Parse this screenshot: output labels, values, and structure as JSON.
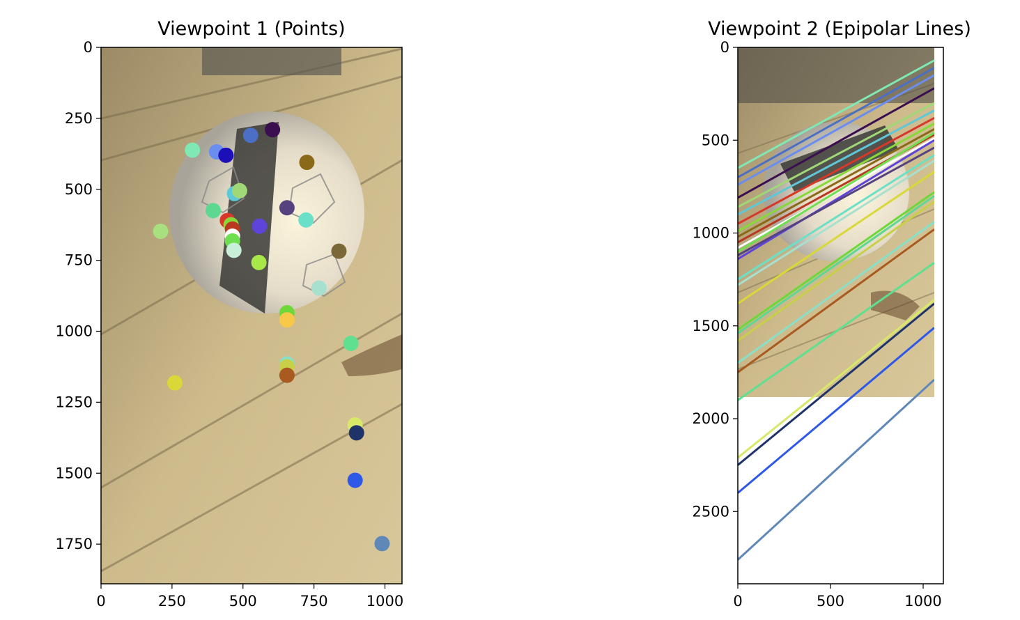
{
  "chart_data": [
    {
      "type": "scatter",
      "title": "Viewpoint 1 (Points)",
      "xlim": [
        0,
        1060
      ],
      "ylim": [
        1890,
        0
      ],
      "x_ticks": [
        0,
        250,
        500,
        750,
        1000
      ],
      "y_ticks": [
        0,
        250,
        500,
        750,
        1000,
        1250,
        1500,
        1750
      ],
      "background": "photo of a soccer ball on wooden deck boards",
      "points": [
        {
          "x": 604,
          "y": 290,
          "color": "#3b0f4f"
        },
        {
          "x": 527,
          "y": 310,
          "color": "#4a6fc4"
        },
        {
          "x": 322,
          "y": 362,
          "color": "#7fe8b4"
        },
        {
          "x": 407,
          "y": 368,
          "color": "#6a8df0"
        },
        {
          "x": 440,
          "y": 380,
          "color": "#1c0fb8"
        },
        {
          "x": 725,
          "y": 405,
          "color": "#8a6a18"
        },
        {
          "x": 470,
          "y": 515,
          "color": "#5ec8d8"
        },
        {
          "x": 488,
          "y": 505,
          "color": "#a0d878"
        },
        {
          "x": 655,
          "y": 565,
          "color": "#54437f"
        },
        {
          "x": 395,
          "y": 575,
          "color": "#5ed890"
        },
        {
          "x": 722,
          "y": 608,
          "color": "#6be0c8"
        },
        {
          "x": 445,
          "y": 610,
          "color": "#d83828"
        },
        {
          "x": 458,
          "y": 625,
          "color": "#88d838"
        },
        {
          "x": 463,
          "y": 640,
          "color": "#b83820"
        },
        {
          "x": 558,
          "y": 630,
          "color": "#5e44d8"
        },
        {
          "x": 210,
          "y": 648,
          "color": "#a8e080"
        },
        {
          "x": 463,
          "y": 665,
          "color": "#ffffff"
        },
        {
          "x": 463,
          "y": 682,
          "color": "#6ee050"
        },
        {
          "x": 468,
          "y": 715,
          "color": "#c8f0d8"
        },
        {
          "x": 838,
          "y": 718,
          "color": "#7a6838"
        },
        {
          "x": 556,
          "y": 758,
          "color": "#a8e848"
        },
        {
          "x": 768,
          "y": 848,
          "color": "#a8e0d0"
        },
        {
          "x": 655,
          "y": 935,
          "color": "#6ed838"
        },
        {
          "x": 655,
          "y": 960,
          "color": "#f8c848"
        },
        {
          "x": 880,
          "y": 1043,
          "color": "#5ee090"
        },
        {
          "x": 655,
          "y": 1115,
          "color": "#88e0c8"
        },
        {
          "x": 655,
          "y": 1125,
          "color": "#c8d048"
        },
        {
          "x": 655,
          "y": 1155,
          "color": "#a85a20"
        },
        {
          "x": 260,
          "y": 1182,
          "color": "#d8d838"
        },
        {
          "x": 895,
          "y": 1330,
          "color": "#d8e868"
        },
        {
          "x": 900,
          "y": 1358,
          "color": "#1e3468"
        },
        {
          "x": 895,
          "y": 1525,
          "color": "#2e58e8"
        },
        {
          "x": 990,
          "y": 1748,
          "color": "#5f88b8"
        }
      ]
    },
    {
      "type": "line",
      "title": "Viewpoint 2 (Epipolar Lines)",
      "xlim": [
        0,
        1110
      ],
      "ylim": [
        2890,
        0
      ],
      "x_ticks": [
        0,
        500,
        1000
      ],
      "y_ticks": [
        0,
        500,
        1000,
        1500,
        2000,
        2500
      ],
      "image_extent": [
        1060,
        1890
      ],
      "background": "photo of a soccer ball on wooden deck boards",
      "lines": [
        {
          "y0": 650,
          "y1": 70,
          "color": "#7fe8b4"
        },
        {
          "y0": 700,
          "y1": 110,
          "color": "#4a6fc4"
        },
        {
          "y0": 740,
          "y1": 150,
          "color": "#6a8df0"
        },
        {
          "y0": 810,
          "y1": 220,
          "color": "#3b0f4f"
        },
        {
          "y0": 860,
          "y1": 300,
          "color": "#a0d878"
        },
        {
          "y0": 900,
          "y1": 340,
          "color": "#5ec8d8"
        },
        {
          "y0": 950,
          "y1": 380,
          "color": "#d83828"
        },
        {
          "y0": 990,
          "y1": 410,
          "color": "#88d838"
        },
        {
          "y0": 1020,
          "y1": 440,
          "color": "#8a6a18"
        },
        {
          "y0": 1050,
          "y1": 470,
          "color": "#b83820"
        },
        {
          "y0": 1080,
          "y1": 490,
          "color": "#ffffff"
        },
        {
          "y0": 1100,
          "y1": 460,
          "color": "#6ee050"
        },
        {
          "y0": 1140,
          "y1": 500,
          "color": "#5e44d8"
        },
        {
          "y0": 1120,
          "y1": 540,
          "color": "#54437f"
        },
        {
          "y0": 1250,
          "y1": 580,
          "color": "#6be0c8"
        },
        {
          "y0": 1280,
          "y1": 610,
          "color": "#a8e0d0"
        },
        {
          "y0": 1380,
          "y1": 670,
          "color": "#d8d838"
        },
        {
          "y0": 1520,
          "y1": 780,
          "color": "#6ed838"
        },
        {
          "y0": 1540,
          "y1": 800,
          "color": "#5ed890"
        },
        {
          "y0": 1580,
          "y1": 830,
          "color": "#c8d048"
        },
        {
          "y0": 1700,
          "y1": 940,
          "color": "#88e0c8"
        },
        {
          "y0": 1750,
          "y1": 980,
          "color": "#a85a20"
        },
        {
          "y0": 1900,
          "y1": 1160,
          "color": "#5ee090"
        },
        {
          "y0": 2210,
          "y1": 1360,
          "color": "#d8e868"
        },
        {
          "y0": 2250,
          "y1": 1380,
          "color": "#1e3468"
        },
        {
          "y0": 2400,
          "y1": 1510,
          "color": "#2e58e8"
        },
        {
          "y0": 2760,
          "y1": 1790,
          "color": "#5f88b8"
        }
      ]
    }
  ]
}
